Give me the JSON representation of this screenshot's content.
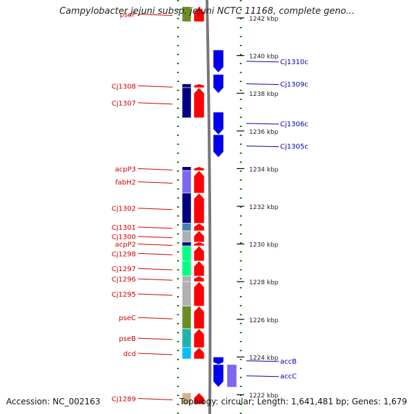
{
  "title": "Campylobacter jejuni subsp. jejuni NCTC 11168, complete geno...",
  "footer": {
    "accession": "Accession: NC_002163",
    "topology": "Topology: circular; Length: 1,641,481 bp; Genes: 1,679"
  },
  "colors": {
    "forward_arrow": "#ff0000",
    "reverse_arrow": "#0000ee",
    "label_forward": "#cc0000",
    "label_reverse": "#0000aa",
    "ruler_dots": "#007700",
    "backbone": "#777777"
  },
  "scale": {
    "unit": "kbp",
    "ticks": [
      {
        "label": "1242 kbp",
        "kbp": 1242
      },
      {
        "label": "1240 kbp",
        "kbp": 1240
      },
      {
        "label": "1238 kbp",
        "kbp": 1238
      },
      {
        "label": "1236 kbp",
        "kbp": 1236
      },
      {
        "label": "1234 kbp",
        "kbp": 1234
      },
      {
        "label": "1232 kbp",
        "kbp": 1232
      },
      {
        "label": "1230 kbp",
        "kbp": 1230
      },
      {
        "label": "1228 kbp",
        "kbp": 1228
      },
      {
        "label": "1226 kbp",
        "kbp": 1226
      },
      {
        "label": "1224 kbp",
        "kbp": 1224
      },
      {
        "label": "1222 kbp",
        "kbp": 1222
      }
    ]
  },
  "genes_forward": [
    {
      "name": "pseF",
      "start": 1242.6,
      "end": 1241.8,
      "cog": "#6b8e23"
    },
    {
      "name": "Cj1308",
      "start": 1238.5,
      "end": 1238.3,
      "cog": "#000080"
    },
    {
      "name": "Cj1307",
      "start": 1238.3,
      "end": 1236.7,
      "cog": "#000080"
    },
    {
      "name": "acpP3",
      "start": 1234.1,
      "end": 1233.9,
      "cog": "#000080"
    },
    {
      "name": "fabH2",
      "start": 1233.9,
      "end": 1232.7,
      "cog": "#7b68ee"
    },
    {
      "name": "Cj1302",
      "start": 1232.7,
      "end": 1231.1,
      "cog": "#000080"
    },
    {
      "name": "Cj1301",
      "start": 1231.1,
      "end": 1230.7,
      "cog": "#4682b4"
    },
    {
      "name": "Cj1300",
      "start": 1230.7,
      "end": 1230.1,
      "cog": "#b0b0b0"
    },
    {
      "name": "acpP2",
      "start": 1230.1,
      "end": 1229.9,
      "cog": "#000080"
    },
    {
      "name": "Cj1298",
      "start": 1229.9,
      "end": 1229.1,
      "cog": "#00ff7f"
    },
    {
      "name": "Cj1297",
      "start": 1229.1,
      "end": 1228.3,
      "cog": "#00ff7f"
    },
    {
      "name": "Cj1296",
      "start": 1228.3,
      "end": 1228.0,
      "cog": "#b0b0b0"
    },
    {
      "name": "Cj1295",
      "start": 1228.0,
      "end": 1226.7,
      "cog": "#b0b0b0"
    },
    {
      "name": "pseC",
      "start": 1226.7,
      "end": 1225.5,
      "cog": "#6b8e23"
    },
    {
      "name": "pseB",
      "start": 1225.5,
      "end": 1224.5,
      "cog": "#20b2aa"
    },
    {
      "name": "dcd",
      "start": 1224.5,
      "end": 1223.9,
      "cog": "#00bfff"
    },
    {
      "name": "Cj1289",
      "start": 1222.1,
      "end": 1221.5,
      "cog": "#d2b48c"
    }
  ],
  "genes_reverse": [
    {
      "name": "Cj1310c",
      "start": 1240.3,
      "end": 1239.1,
      "cog": "#0000ee"
    },
    {
      "name": "Cj1309c",
      "start": 1239.0,
      "end": 1238.0,
      "cog": "#0000ee"
    },
    {
      "name": "Cj1306c",
      "start": 1237.0,
      "end": 1235.8,
      "cog": "#0000ee"
    },
    {
      "name": "Cj1305c",
      "start": 1235.8,
      "end": 1234.6,
      "cog": "#0000ee"
    },
    {
      "name": "accB",
      "start": 1224.0,
      "end": 1223.6,
      "cog": "#0000ee"
    },
    {
      "name": "accC",
      "start": 1223.6,
      "end": 1222.4,
      "cog": "#7b68ee"
    }
  ]
}
